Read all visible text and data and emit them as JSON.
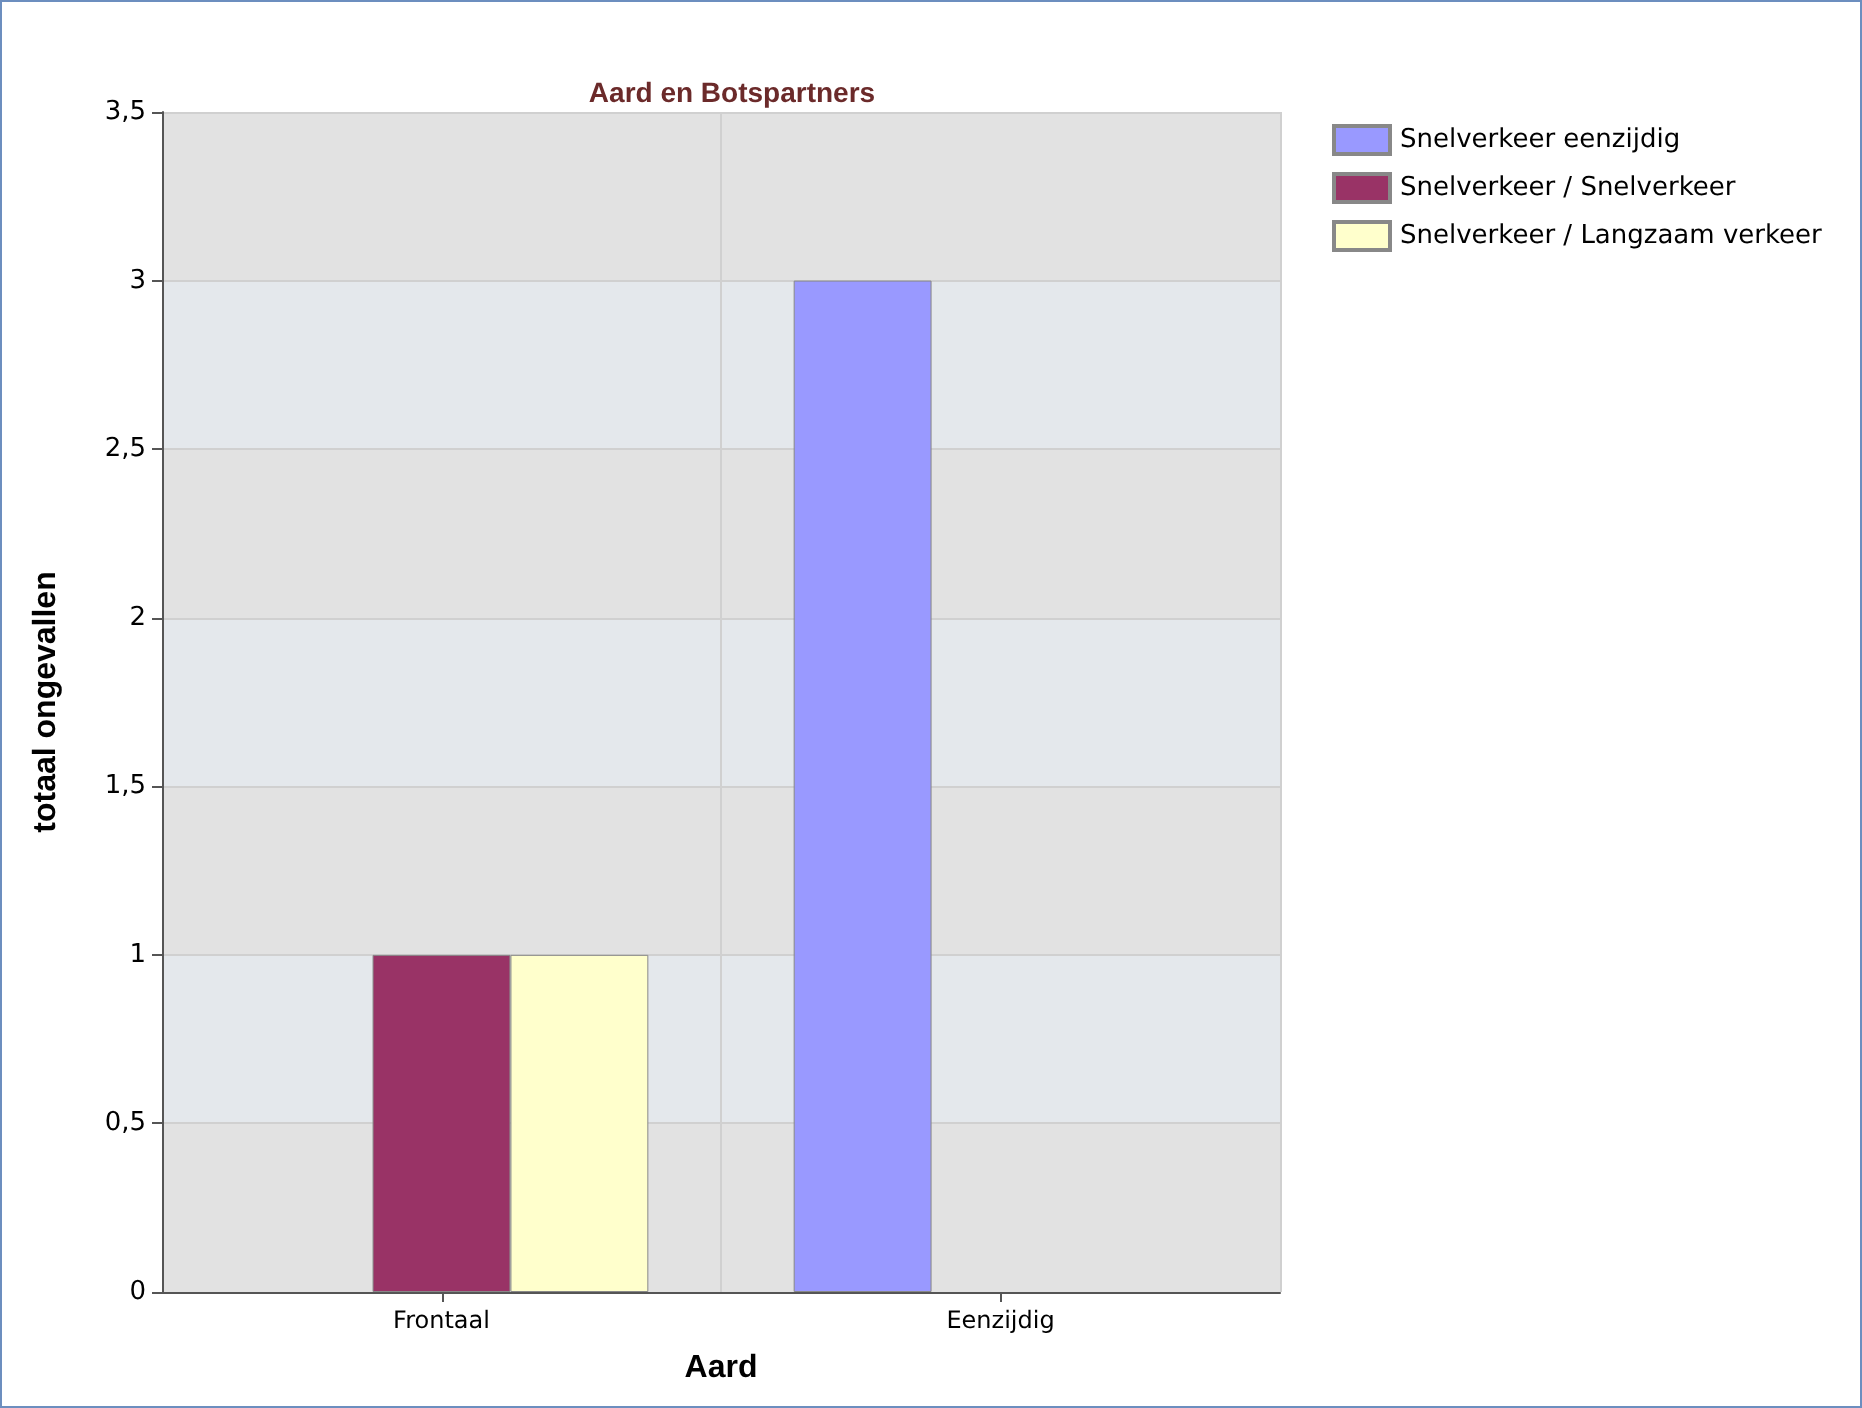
{
  "chart_data": {
    "type": "bar",
    "title": "Aard en Botspartners",
    "xlabel": "Aard",
    "ylabel": "totaal ongevallen",
    "categories": [
      "Frontaal",
      "Eenzijdig"
    ],
    "series": [
      {
        "name": "Snelverkeer eenzijdig",
        "color": "#9999ff",
        "values": [
          0,
          3
        ]
      },
      {
        "name": "Snelverkeer / Snelverkeer",
        "color": "#993366",
        "values": [
          1,
          0
        ]
      },
      {
        "name": "Snelverkeer / Langzaam verkeer",
        "color": "#ffffcc",
        "values": [
          1,
          0
        ]
      }
    ],
    "ylim": [
      0,
      3.5
    ],
    "yticks": [
      {
        "value": 0,
        "label": "0"
      },
      {
        "value": 0.5,
        "label": "0,5"
      },
      {
        "value": 1,
        "label": "1"
      },
      {
        "value": 1.5,
        "label": "1,5"
      },
      {
        "value": 2,
        "label": "2"
      },
      {
        "value": 2.5,
        "label": "2,5"
      },
      {
        "value": 3,
        "label": "3"
      },
      {
        "value": 3.5,
        "label": "3,5"
      }
    ],
    "grid": true,
    "legend": "top right"
  }
}
